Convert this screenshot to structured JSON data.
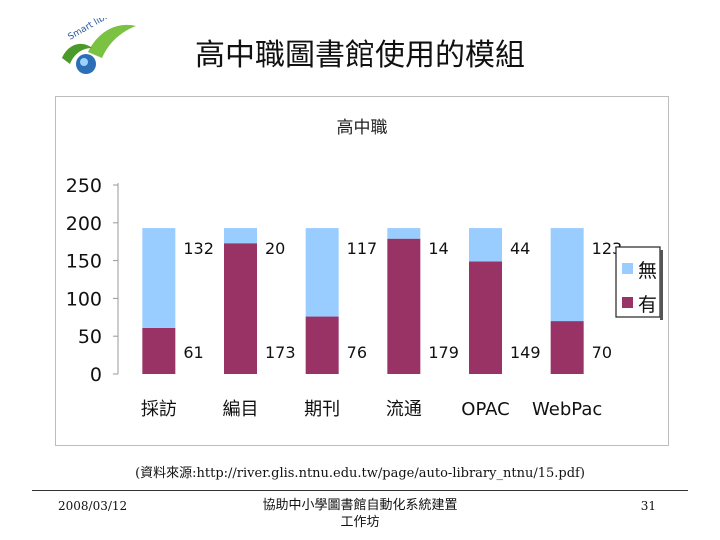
{
  "slide": {
    "title": "高中職圖書館使用的模組",
    "source": "(資料來源:http://river.glis.ntnu.edu.tw/page/auto-library_ntnu/15.pdf)",
    "date": "2008/03/12",
    "footer_line1": "協助中小學圖書館自動化系統建置",
    "footer_line2": "工作坊",
    "page_number": "31",
    "logo_text": "Smart library"
  },
  "chart_data": {
    "type": "bar",
    "stacked": true,
    "title": "高中職",
    "categories": [
      "採訪",
      "編目",
      "期刊",
      "流通",
      "OPAC",
      "WebPac"
    ],
    "series": [
      {
        "name": "有",
        "color": "#993366",
        "values": [
          61,
          173,
          76,
          179,
          149,
          70
        ]
      },
      {
        "name": "無",
        "color": "#99ccff",
        "values": [
          132,
          20,
          117,
          14,
          44,
          123
        ]
      }
    ],
    "yticks": [
      0,
      50,
      100,
      150,
      200,
      250
    ],
    "ylim": [
      0,
      250
    ],
    "grid": false,
    "legend_position": "right"
  }
}
